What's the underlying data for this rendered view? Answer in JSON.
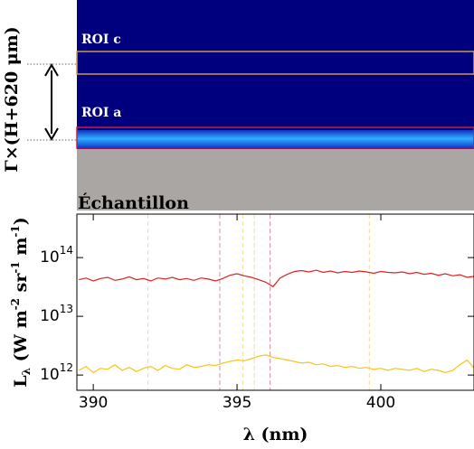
{
  "image_panel": {
    "roi_upper": "ROI c",
    "roi_lower": "ROI a",
    "sample_label": "Échantillon",
    "height_label": "Γ×(H+620 μm)"
  },
  "chart_data": {
    "type": "line",
    "xlabel": "λ (nm)",
    "ylabel_parts": [
      {
        "text": "L"
      },
      {
        "text": "λ",
        "shift": "sub"
      },
      {
        "text": " (W m"
      },
      {
        "text": "-2",
        "shift": "super"
      },
      {
        "text": " sr"
      },
      {
        "text": "-1",
        "shift": "super"
      },
      {
        "text": " m"
      },
      {
        "text": "-1",
        "shift": "super"
      },
      {
        "text": ")"
      }
    ],
    "log_y": true,
    "xlim": [
      389.43,
      403.24
    ],
    "ylim": [
      550000000000,
      550000000000000
    ],
    "xticks": [
      390,
      395,
      400
    ],
    "yticks": [
      {
        "value": 1000000000000,
        "label": "10",
        "exponent": "12"
      },
      {
        "value": 10000000000000,
        "label": "10",
        "exponent": "13"
      },
      {
        "value": 100000000000000,
        "label": "10",
        "exponent": "14"
      }
    ],
    "vlines": [
      {
        "x": 391.9,
        "color": "#f5e08a"
      },
      {
        "x": 394.4,
        "color": "#e8889a"
      },
      {
        "x": 395.2,
        "color": "#f5e08a"
      },
      {
        "x": 395.6,
        "color": "#f5e08a"
      },
      {
        "x": 396.15,
        "color": "#e8889a"
      },
      {
        "x": 399.6,
        "color": "#f5e08a"
      }
    ],
    "x": [
      389.5,
      389.75,
      390,
      390.25,
      390.5,
      390.75,
      391,
      391.25,
      391.5,
      391.75,
      392,
      392.25,
      392.5,
      392.75,
      393,
      393.25,
      393.5,
      393.75,
      394,
      394.25,
      394.5,
      394.75,
      395,
      395.25,
      395.5,
      395.75,
      396,
      396.25,
      396.5,
      396.75,
      397,
      397.25,
      397.5,
      397.75,
      398,
      398.25,
      398.5,
      398.75,
      399,
      399.25,
      399.5,
      399.75,
      400,
      400.25,
      400.5,
      400.75,
      401,
      401.25,
      401.5,
      401.75,
      402,
      402.25,
      402.5,
      402.75,
      403,
      403.25
    ],
    "series": [
      {
        "color": "#dd2222",
        "values": [
          42000000000000.0,
          45000000000000.0,
          40000000000000.0,
          44000000000000.0,
          46000000000000.0,
          41000000000000.0,
          43000000000000.0,
          47000000000000.0,
          42000000000000.0,
          44000000000000.0,
          40000000000000.0,
          45000000000000.0,
          43000000000000.0,
          46000000000000.0,
          42000000000000.0,
          44000000000000.0,
          41000000000000.0,
          45000000000000.0,
          43000000000000.0,
          40000000000000.0,
          44000000000000.0,
          50000000000000.0,
          53000000000000.0,
          49000000000000.0,
          46000000000000.0,
          42000000000000.0,
          38000000000000.0,
          32000000000000.0,
          45000000000000.0,
          52000000000000.0,
          58000000000000.0,
          60000000000000.0,
          57000000000000.0,
          61000000000000.0,
          56000000000000.0,
          59000000000000.0,
          55000000000000.0,
          58000000000000.0,
          56000000000000.0,
          59000000000000.0,
          57000000000000.0,
          54000000000000.0,
          58000000000000.0,
          56000000000000.0,
          55000000000000.0,
          57000000000000.0,
          53000000000000.0,
          56000000000000.0,
          52000000000000.0,
          54000000000000.0,
          50000000000000.0,
          53000000000000.0,
          49000000000000.0,
          51000000000000.0,
          46000000000000.0,
          48000000000000.0
        ]
      },
      {
        "color": "#f5c518",
        "values": [
          1200000000000.0,
          1400000000000.0,
          1100000000000.0,
          1300000000000.0,
          1250000000000.0,
          1500000000000.0,
          1200000000000.0,
          1350000000000.0,
          1150000000000.0,
          1300000000000.0,
          1400000000000.0,
          1200000000000.0,
          1450000000000.0,
          1300000000000.0,
          1250000000000.0,
          1500000000000.0,
          1350000000000.0,
          1400000000000.0,
          1500000000000.0,
          1450000000000.0,
          1600000000000.0,
          1700000000000.0,
          1800000000000.0,
          1750000000000.0,
          1900000000000.0,
          2100000000000.0,
          2200000000000.0,
          2000000000000.0,
          1900000000000.0,
          1800000000000.0,
          1700000000000.0,
          1600000000000.0,
          1650000000000.0,
          1500000000000.0,
          1550000000000.0,
          1400000000000.0,
          1450000000000.0,
          1350000000000.0,
          1400000000000.0,
          1300000000000.0,
          1350000000000.0,
          1250000000000.0,
          1300000000000.0,
          1200000000000.0,
          1300000000000.0,
          1250000000000.0,
          1200000000000.0,
          1300000000000.0,
          1150000000000.0,
          1250000000000.0,
          1200000000000.0,
          1100000000000.0,
          1200000000000.0,
          1500000000000.0,
          1800000000000.0,
          1300000000000.0
        ]
      }
    ]
  }
}
